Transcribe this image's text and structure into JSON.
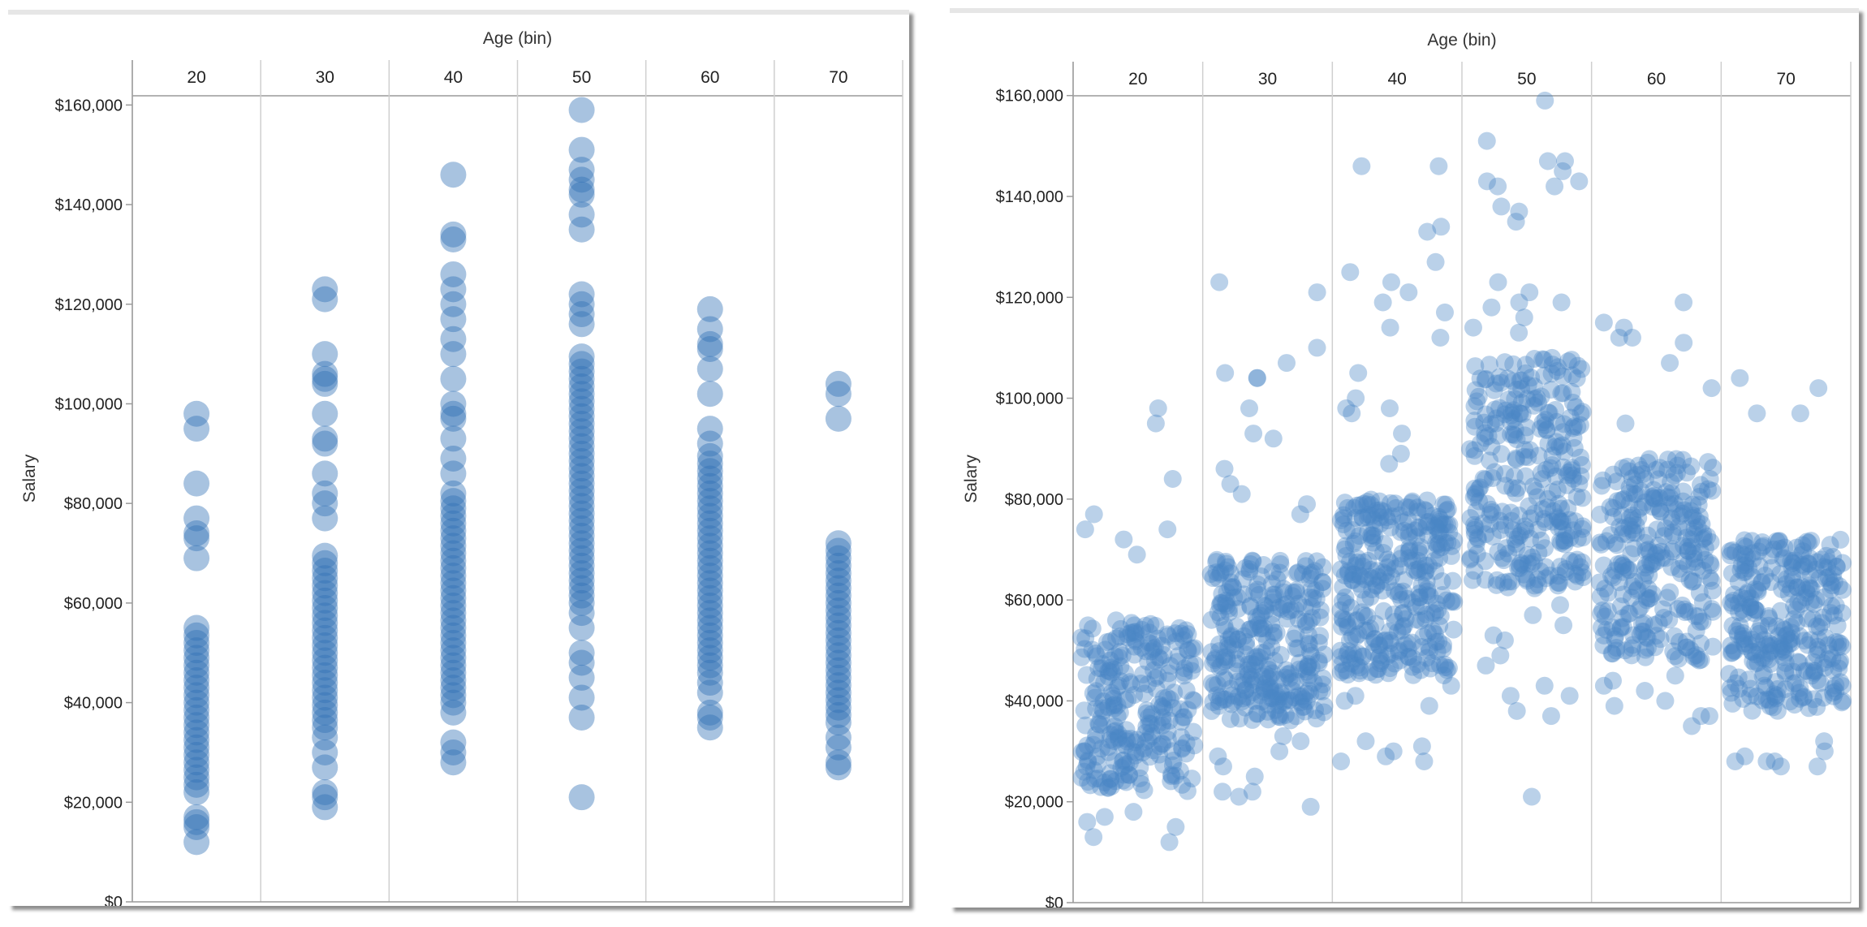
{
  "chart_data": [
    {
      "type": "scatter",
      "variant": "stacked-strip",
      "column_header_title": "Age (bin)",
      "ylabel": "Salary",
      "categories": [
        "20",
        "30",
        "40",
        "50",
        "60",
        "70"
      ],
      "y_ticks": [
        "$0",
        "$20,000",
        "$40,000",
        "$60,000",
        "$80,000",
        "$100,000",
        "$120,000",
        "$140,000",
        "$160,000"
      ],
      "ylim": [
        0,
        170000
      ],
      "grid": false,
      "jitter": false,
      "point_color": "#2f6fb4",
      "point_opacity": 0.42,
      "bins": [
        {
          "age": "20",
          "range": [
            22000,
            56000
          ],
          "outliers": [
            98000,
            95000,
            84000,
            77000,
            74000,
            73000,
            69000,
            17000,
            16000,
            15000,
            12000
          ]
        },
        {
          "age": "30",
          "range": [
            35000,
            70000
          ],
          "outliers": [
            123000,
            121000,
            110000,
            106000,
            105000,
            104000,
            98000,
            93000,
            92000,
            86000,
            82000,
            80000,
            77000,
            33000,
            30000,
            27000,
            22000,
            21000,
            19000
          ]
        },
        {
          "age": "40",
          "range": [
            40000,
            82000
          ],
          "outliers": [
            146000,
            134000,
            133000,
            126000,
            123000,
            120000,
            117000,
            113000,
            110000,
            105000,
            100000,
            98000,
            97000,
            93000,
            89000,
            86000,
            38000,
            32000,
            30000,
            28000
          ]
        },
        {
          "age": "50",
          "range": [
            60000,
            110000
          ],
          "outliers": [
            159000,
            151000,
            147000,
            145000,
            143000,
            142000,
            138000,
            135000,
            122000,
            120000,
            118000,
            116000,
            58000,
            55000,
            50000,
            48000,
            45000,
            41000,
            37000,
            21000
          ]
        },
        {
          "age": "60",
          "range": [
            46000,
            90000
          ],
          "outliers": [
            119000,
            115000,
            112000,
            111000,
            107000,
            102000,
            95000,
            92000,
            44000,
            42000,
            38000,
            37000,
            35000
          ]
        },
        {
          "age": "70",
          "range": [
            36000,
            72000
          ],
          "outliers": [
            104000,
            102000,
            97000,
            33000,
            31000,
            28000,
            27000
          ]
        }
      ]
    },
    {
      "type": "scatter",
      "variant": "jittered-strip",
      "column_header_title": "Age (bin)",
      "ylabel": "Salary",
      "categories": [
        "20",
        "30",
        "40",
        "50",
        "60",
        "70"
      ],
      "y_ticks": [
        "$0",
        "$20,000",
        "$40,000",
        "$60,000",
        "$80,000",
        "$100,000",
        "$120,000",
        "$140,000",
        "$160,000"
      ],
      "ylim": [
        0,
        168000
      ],
      "grid": false,
      "jitter": true,
      "point_color": "#4a86c5",
      "point_opacity": 0.38,
      "bins": [
        {
          "age": "20",
          "range": [
            22000,
            56000
          ],
          "count": 260,
          "outliers": [
            98000,
            95000,
            84000,
            77000,
            74000,
            74000,
            72000,
            69000,
            18000,
            17000,
            16000,
            15000,
            13000,
            12000
          ]
        },
        {
          "age": "30",
          "range": [
            36000,
            68000
          ],
          "count": 300,
          "outliers": [
            123000,
            121000,
            110000,
            107000,
            105000,
            104000,
            104000,
            98000,
            93000,
            92000,
            86000,
            83000,
            81000,
            79000,
            77000,
            33000,
            32000,
            30000,
            29000,
            27000,
            25000,
            22000,
            22000,
            21000,
            19000
          ]
        },
        {
          "age": "40",
          "range": [
            45000,
            80000
          ],
          "count": 320,
          "outliers": [
            146000,
            146000,
            134000,
            133000,
            127000,
            125000,
            123000,
            121000,
            119000,
            117000,
            114000,
            112000,
            105000,
            100000,
            98000,
            98000,
            97000,
            93000,
            89000,
            87000,
            43000,
            41000,
            40000,
            39000,
            32000,
            31000,
            30000,
            29000,
            28000,
            28000
          ]
        },
        {
          "age": "50",
          "range": [
            62000,
            108000
          ],
          "count": 300,
          "outliers": [
            159000,
            151000,
            147000,
            147000,
            145000,
            143000,
            143000,
            142000,
            142000,
            138000,
            137000,
            135000,
            123000,
            121000,
            119000,
            119000,
            118000,
            116000,
            114000,
            113000,
            59000,
            57000,
            55000,
            53000,
            52000,
            49000,
            47000,
            43000,
            41000,
            41000,
            38000,
            37000,
            21000
          ]
        },
        {
          "age": "60",
          "range": [
            48000,
            88000
          ],
          "count": 280,
          "outliers": [
            119000,
            115000,
            114000,
            112000,
            112000,
            111000,
            107000,
            102000,
            95000,
            45000,
            44000,
            43000,
            42000,
            40000,
            39000,
            37000,
            37000,
            35000
          ]
        },
        {
          "age": "70",
          "range": [
            38000,
            72000
          ],
          "count": 300,
          "outliers": [
            104000,
            102000,
            97000,
            97000,
            32000,
            30000,
            29000,
            28000,
            28000,
            28000,
            27000,
            27000
          ]
        }
      ]
    }
  ]
}
